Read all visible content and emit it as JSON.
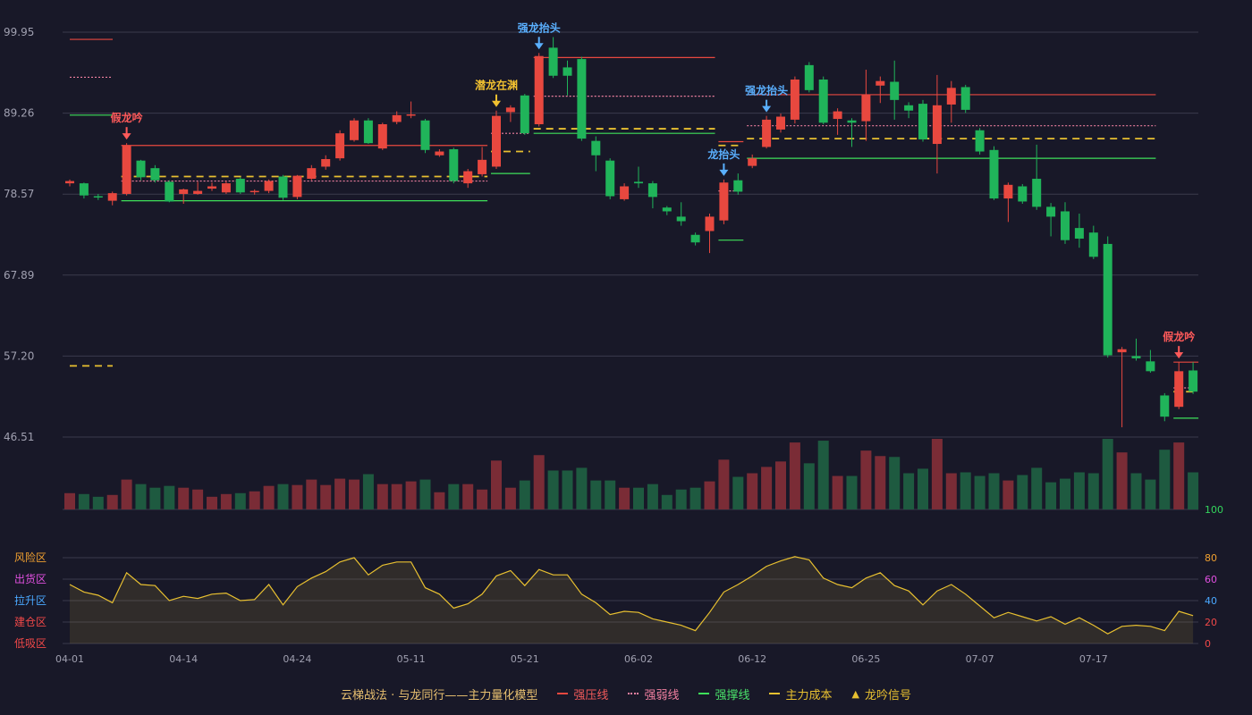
{
  "chart_data": {
    "type": "candlestick",
    "y_ticks": [
      "99.95",
      "89.26",
      "78.57",
      "67.89",
      "57.20",
      "46.51"
    ],
    "ylim": [
      46.51,
      99.95
    ],
    "x_ticks": [
      {
        "index": 0,
        "label": "04-01"
      },
      {
        "index": 8,
        "label": "04-14"
      },
      {
        "index": 16,
        "label": "04-24"
      },
      {
        "index": 24,
        "label": "05-11"
      },
      {
        "index": 32,
        "label": "05-21"
      },
      {
        "index": 40,
        "label": "06-02"
      },
      {
        "index": 48,
        "label": "06-12"
      },
      {
        "index": 56,
        "label": "06-25"
      },
      {
        "index": 64,
        "label": "07-07"
      },
      {
        "index": 72,
        "label": "07-17"
      }
    ],
    "candles": [
      [
        80.0,
        80.3,
        80.5,
        79.6
      ],
      [
        80.0,
        78.4,
        80.1,
        78.0
      ],
      [
        78.3,
        78.2,
        78.6,
        77.8
      ],
      [
        77.7,
        78.7,
        78.9,
        77.1
      ],
      [
        78.6,
        85.0,
        85.3,
        78.4
      ],
      [
        83.0,
        80.8,
        83.1,
        80.4
      ],
      [
        82.0,
        80.4,
        82.4,
        80.1
      ],
      [
        80.2,
        77.6,
        80.4,
        77.5
      ],
      [
        78.6,
        79.2,
        79.3,
        77.3
      ],
      [
        78.6,
        79.0,
        80.2,
        78.5
      ],
      [
        79.3,
        79.6,
        80.1,
        79.0
      ],
      [
        78.8,
        80.0,
        80.3,
        78.6
      ],
      [
        80.6,
        78.8,
        80.8,
        78.6
      ],
      [
        78.9,
        79.0,
        79.2,
        78.5
      ],
      [
        79.0,
        80.3,
        80.5,
        78.7
      ],
      [
        80.9,
        78.1,
        81.1,
        77.8
      ],
      [
        78.2,
        81.0,
        81.1,
        77.9
      ],
      [
        80.6,
        82.0,
        82.4,
        80.4
      ],
      [
        82.2,
        83.2,
        83.7,
        81.8
      ],
      [
        83.3,
        86.6,
        87.0,
        83.0
      ],
      [
        85.7,
        88.3,
        88.6,
        85.5
      ],
      [
        88.3,
        85.3,
        88.6,
        85.2
      ],
      [
        84.6,
        87.8,
        88.0,
        84.4
      ],
      [
        88.1,
        89.0,
        89.5,
        87.8
      ],
      [
        89.0,
        89.1,
        90.8,
        88.6
      ],
      [
        88.3,
        84.4,
        88.5,
        84.0
      ],
      [
        83.7,
        84.2,
        84.5,
        83.5
      ],
      [
        84.5,
        80.3,
        84.7,
        80.0
      ],
      [
        80.0,
        81.6,
        81.9,
        79.4
      ],
      [
        81.2,
        83.1,
        84.8,
        80.9
      ],
      [
        82.2,
        88.9,
        89.6,
        81.9
      ],
      [
        89.4,
        90.0,
        90.3,
        88.1
      ],
      [
        91.6,
        86.6,
        91.8,
        86.4
      ],
      [
        87.8,
        96.8,
        97.2,
        87.5
      ],
      [
        97.9,
        94.2,
        99.3,
        93.9
      ],
      [
        95.3,
        94.2,
        96.2,
        91.6
      ],
      [
        96.4,
        85.9,
        96.7,
        85.6
      ],
      [
        85.6,
        83.7,
        86.2,
        81.6
      ],
      [
        83.0,
        78.3,
        83.3,
        77.9
      ],
      [
        77.9,
        79.6,
        80.0,
        77.7
      ],
      [
        80.2,
        80.0,
        82.2,
        79.4
      ],
      [
        80.0,
        78.2,
        80.3,
        76.7
      ],
      [
        76.8,
        76.3,
        77.0,
        75.8
      ],
      [
        75.6,
        75.0,
        77.5,
        74.4
      ],
      [
        73.2,
        72.2,
        73.5,
        71.8
      ],
      [
        73.7,
        75.6,
        76.0,
        70.8
      ],
      [
        75.1,
        80.1,
        80.5,
        74.6
      ],
      [
        80.4,
        78.9,
        81.3,
        78.5
      ],
      [
        82.3,
        83.3,
        83.8,
        82.0
      ],
      [
        84.8,
        88.4,
        88.9,
        84.6
      ],
      [
        87.1,
        88.8,
        89.2,
        86.7
      ],
      [
        88.4,
        93.7,
        94.1,
        87.9
      ],
      [
        95.6,
        92.3,
        96.0,
        92.0
      ],
      [
        93.7,
        88.0,
        94.1,
        87.8
      ],
      [
        88.5,
        89.5,
        89.9,
        86.4
      ],
      [
        88.3,
        88.0,
        88.6,
        84.8
      ],
      [
        88.2,
        91.7,
        95.0,
        85.6
      ],
      [
        92.9,
        93.5,
        94.1,
        90.6
      ],
      [
        93.4,
        91.0,
        96.2,
        88.4
      ],
      [
        90.3,
        89.6,
        90.7,
        88.6
      ],
      [
        90.5,
        85.8,
        91.0,
        85.5
      ],
      [
        85.2,
        90.3,
        94.3,
        81.3
      ],
      [
        90.4,
        92.6,
        93.5,
        88.0
      ],
      [
        92.7,
        89.7,
        93.0,
        89.3
      ],
      [
        87.0,
        84.2,
        87.3,
        83.8
      ],
      [
        84.4,
        78.0,
        84.9,
        77.8
      ],
      [
        78.0,
        79.8,
        80.1,
        74.9
      ],
      [
        79.6,
        77.6,
        79.9,
        77.3
      ],
      [
        80.6,
        76.9,
        85.1,
        76.5
      ],
      [
        76.9,
        75.6,
        77.4,
        73.0
      ],
      [
        76.3,
        72.5,
        77.5,
        72.0
      ],
      [
        74.1,
        72.7,
        76.0,
        71.5
      ],
      [
        73.5,
        70.3,
        74.4,
        70.0
      ],
      [
        72.0,
        57.3,
        73.0,
        57.0
      ],
      [
        57.7,
        58.1,
        58.4,
        47.8
      ],
      [
        57.2,
        56.9,
        59.5,
        56.6
      ],
      [
        56.5,
        55.2,
        58.0,
        55.0
      ],
      [
        52.0,
        49.2,
        52.3,
        48.6
      ],
      [
        50.5,
        55.2,
        56.4,
        50.2
      ],
      [
        55.3,
        52.5,
        56.4,
        52.2
      ]
    ],
    "volumes": [
      18,
      17,
      14,
      16,
      33,
      28,
      24,
      26,
      24,
      22,
      14,
      17,
      18,
      20,
      26,
      28,
      27,
      33,
      27,
      34,
      33,
      39,
      28,
      28,
      31,
      33,
      19,
      28,
      28,
      22,
      54,
      24,
      32,
      60,
      43,
      43,
      46,
      32,
      32,
      24,
      24,
      28,
      16,
      22,
      24,
      31,
      55,
      36,
      40,
      47,
      53,
      74,
      51,
      76,
      37,
      37,
      65,
      59,
      58,
      40,
      45,
      78,
      40,
      41,
      37,
      40,
      32,
      38,
      46,
      30,
      34,
      41,
      40,
      78,
      63,
      40,
      33,
      66,
      74,
      41
    ],
    "vol_max": 80,
    "indicator": [
      55,
      48,
      45,
      38,
      66,
      55,
      54,
      40,
      44,
      42,
      46,
      47,
      40,
      41,
      55,
      36,
      53,
      61,
      67,
      76,
      80,
      64,
      73,
      76,
      76,
      52,
      46,
      33,
      37,
      46,
      63,
      68,
      54,
      69,
      64,
      64,
      46,
      38,
      27,
      30,
      29,
      23,
      20,
      17,
      12,
      29,
      48,
      55,
      63,
      72,
      77,
      81,
      78,
      61,
      55,
      52,
      61,
      66,
      54,
      49,
      36,
      49,
      55,
      46,
      35,
      24,
      29,
      25,
      21,
      25,
      18,
      24,
      17,
      9,
      16,
      17,
      16,
      12,
      30,
      26
    ],
    "indicator_range": [
      0,
      100
    ],
    "indicator_ticks": [
      "100",
      "80",
      "60",
      "40",
      "20",
      "0"
    ],
    "indicator_tick_colors": [
      "#33d65c",
      "#f0a030",
      "#e050e0",
      "#4aa8ff",
      "#f04848",
      "#f04848"
    ],
    "zones": [
      {
        "label": "风险区",
        "color": "#f0a030"
      },
      {
        "label": "出货区",
        "color": "#e050e0"
      },
      {
        "label": "拉升区",
        "color": "#4aa8ff"
      },
      {
        "label": "建仓区",
        "color": "#f04848"
      },
      {
        "label": "低吸区",
        "color": "#f04848"
      }
    ],
    "signals": [
      {
        "index": 4,
        "label": "假龙吟",
        "type": "red",
        "price": 85.3
      },
      {
        "index": 30,
        "label": "潜龙在渊",
        "type": "gold",
        "price": 89.6
      },
      {
        "index": 33,
        "label": "强龙抬头",
        "type": "blue",
        "price": 97.2
      },
      {
        "index": 46,
        "label": "龙抬头",
        "type": "blue",
        "price": 80.5
      },
      {
        "index": 49,
        "label": "强龙抬头",
        "type": "blue",
        "price": 88.9
      },
      {
        "index": 78,
        "label": "假龙吟",
        "type": "red",
        "price": 56.4
      }
    ],
    "segments": [
      {
        "from": 4,
        "to": 29,
        "pressure": 85.0,
        "weak": 80.3,
        "cost": 80.9,
        "support": 77.7
      },
      {
        "from": 30,
        "to": 32,
        "pressure": null,
        "weak": 86.6,
        "cost": 84.2,
        "support": 81.3
      },
      {
        "from": 33,
        "to": 45,
        "pressure": 96.6,
        "weak": 91.5,
        "cost": 87.2,
        "support": 86.6
      },
      {
        "from": 46,
        "to": 47,
        "pressure": 85.5,
        "weak": 79.0,
        "cost": 85.0,
        "support": 72.5
      },
      {
        "from": 48,
        "to": 76,
        "pressure": 91.7,
        "weak": 87.6,
        "cost": 85.9,
        "support": 83.3
      },
      {
        "from": 78,
        "to": 79,
        "pressure": 56.4,
        "weak": 53.0,
        "cost": 52.5,
        "support": 49.0
      }
    ],
    "legend_sample": {
      "pressure": 99.0,
      "weak": 94.0,
      "support": 89.0,
      "cost": 55.9
    },
    "colors": {
      "up": "#e8483f",
      "down": "#20b45a",
      "up_vol": "#7a2c36",
      "down_vol": "#1e5a40",
      "pressure": "#e8483f",
      "weak": "#f080a0",
      "support": "#3ee05a",
      "cost": "#e8c030",
      "indicator": "#e8c030",
      "grid": "#3a3a4c",
      "axis_text": "#a0a0b0",
      "signal_red": "#ff5a5a",
      "signal_gold": "#f0c030",
      "signal_blue": "#5ab0ff"
    }
  },
  "legend": {
    "model_title": "云梯战法 · 与龙同行——主力量化模型",
    "items": [
      {
        "key": "pressure",
        "label": "强压线"
      },
      {
        "key": "weak",
        "label": "强弱线"
      },
      {
        "key": "support",
        "label": "强撑线"
      },
      {
        "key": "cost",
        "label": "主力成本"
      },
      {
        "key": "signal",
        "label": "龙吟信号"
      }
    ]
  }
}
